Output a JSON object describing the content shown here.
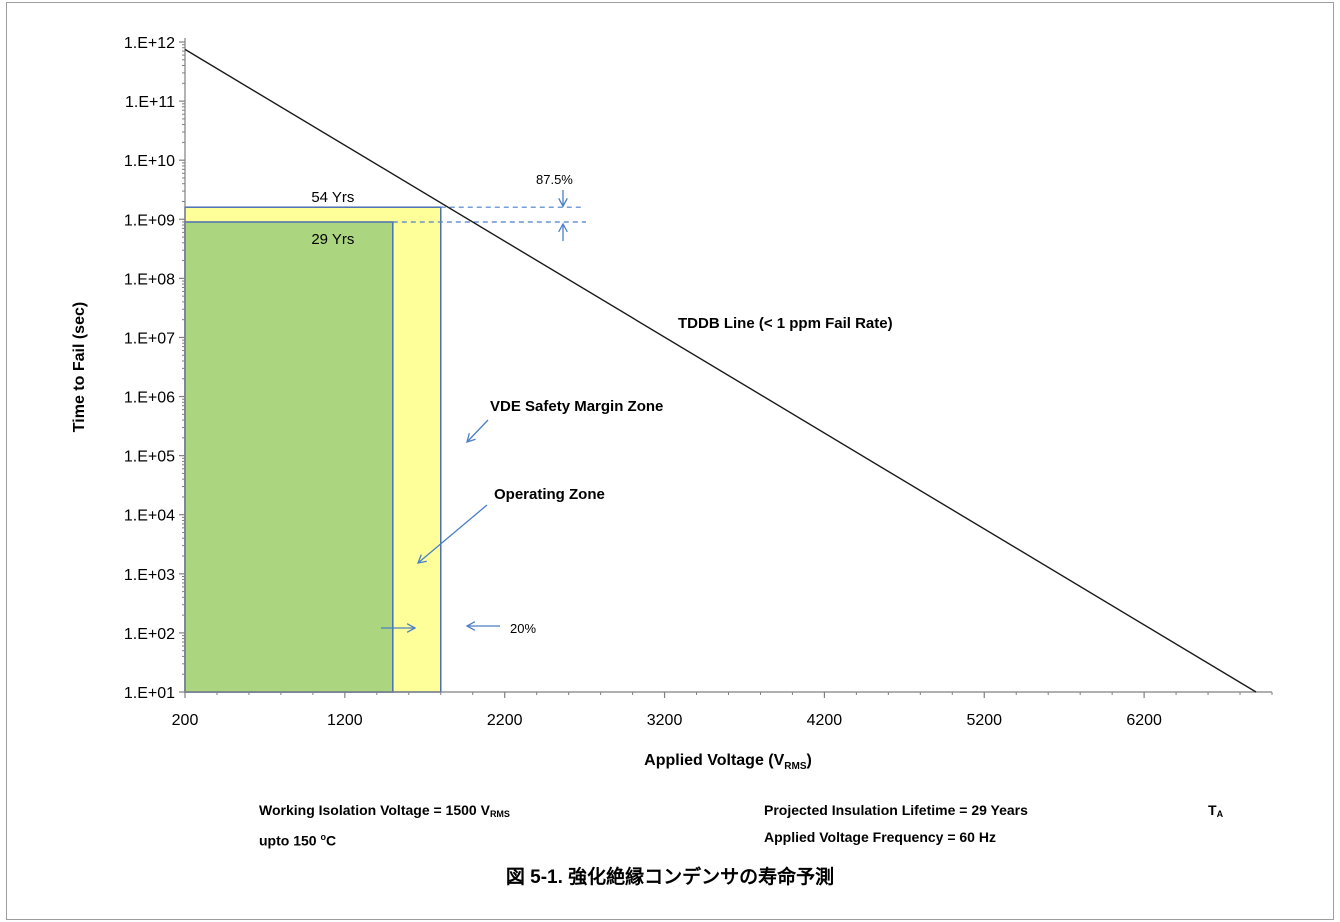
{
  "chart_data": {
    "type": "line",
    "ylabel": "Time to Fail (sec)",
    "xlabel_main": "Applied Voltage (V",
    "xlabel_sub": "RMS",
    "xlabel_end": ")",
    "y_scale": "log",
    "xlim": [
      200,
      7000
    ],
    "ylim": [
      10,
      1000000000000.0
    ],
    "x_ticks": [
      200,
      1200,
      2200,
      3200,
      4200,
      5200,
      6200
    ],
    "x_tick_labels": [
      "200",
      "1200",
      "2200",
      "3200",
      "4200",
      "5200",
      "6200"
    ],
    "y_ticks": [
      10.0,
      100.0,
      1000.0,
      10000.0,
      100000.0,
      1000000.0,
      10000000.0,
      100000000.0,
      1000000000.0,
      10000000000.0,
      100000000000.0,
      1000000000000.0
    ],
    "y_tick_labels": [
      "1.E+01",
      "1.E+02",
      "1.E+03",
      "1.E+04",
      "1.E+05",
      "1.E+06",
      "1.E+07",
      "1.E+08",
      "1.E+09",
      "1.E+10",
      "1.E+11",
      "1.E+12"
    ],
    "grid": false,
    "series": [
      {
        "name": "TDDB Line (< 1 ppm Fail Rate)",
        "x": [
          200,
          6900
        ],
        "y": [
          750000000000.0,
          10
        ],
        "color": "#1a1a1a"
      }
    ],
    "zones": [
      {
        "name": "VDE Safety Margin Zone",
        "label": "54 Yrs",
        "x_range": [
          200,
          1800
        ],
        "y_top": 1600000000.0,
        "color": "#ffff99"
      },
      {
        "name": "Operating Zone",
        "label": "29 Yrs",
        "x_range": [
          200,
          1500
        ],
        "y_top": 900000000.0,
        "color": "#acd580"
      }
    ],
    "annotations": {
      "tddb": "TDDB Line (< 1 ppm Fail Rate)",
      "vde": "VDE Safety Margin Zone",
      "operating": "Operating  Zone",
      "pct_time": "87.5%",
      "pct_voltage": "20%"
    },
    "colors": {
      "axis": "#808080",
      "zone_edge": "#4a6fb5",
      "arrow": "#4a7fc8",
      "text": "#000000"
    }
  },
  "info": {
    "working_isolation_prefix": "Working Isolation Voltage = 1500 V",
    "working_isolation_sub": "RMS",
    "projected_lifetime": "Projected Insulation Lifetime =  29 Years",
    "ta_main": "T",
    "ta_sub": "A",
    "upto": "upto 150 ",
    "upto_deg": "o",
    "upto_unit": "C",
    "frequency": "Applied Voltage Frequency = 60 Hz"
  },
  "caption": "図 5-1. 強化絶縁コンデンサの寿命予測"
}
